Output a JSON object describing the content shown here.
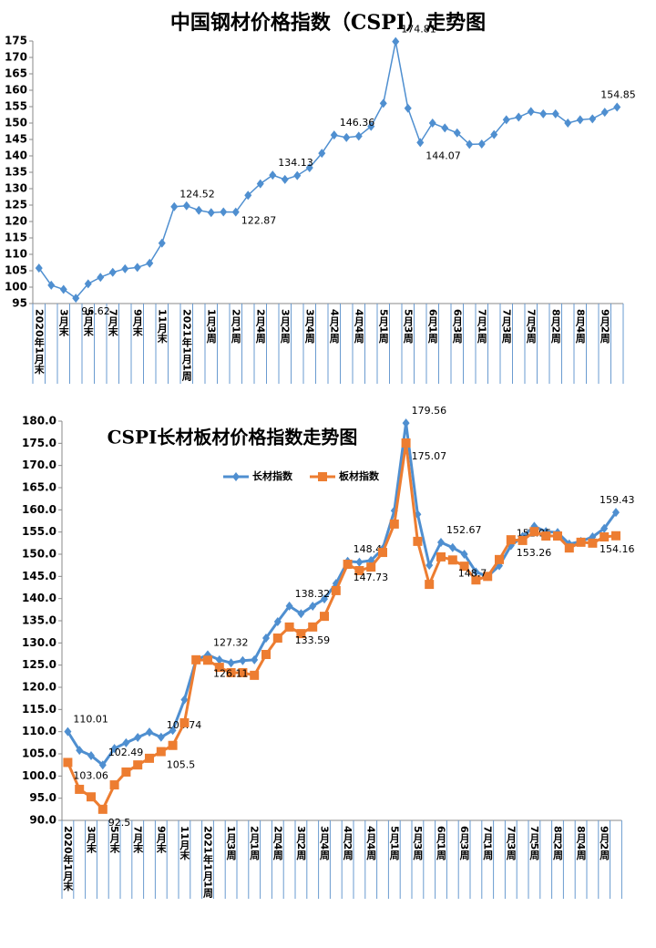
{
  "chart_data": [
    {
      "type": "line",
      "title": "中国钢材价格指数（CSPI）走势图",
      "categories": [
        "2020年1月末",
        null,
        "3月末",
        null,
        "5月末",
        null,
        "7月末",
        null,
        "9月末",
        null,
        "11月末",
        null,
        "2021年1月1周",
        null,
        "1月3周",
        null,
        "2月1周",
        null,
        "2月4周",
        null,
        "3月2周",
        null,
        "3月4周",
        null,
        "4月2周",
        null,
        "4月4周",
        null,
        "5月1周",
        null,
        "5月3周",
        null,
        "6月1周",
        null,
        "6月3周",
        null,
        "7月1周",
        null,
        "7月3周",
        null,
        "7月5周",
        null,
        "8月2周",
        null,
        "8月4周",
        null,
        "9月2周",
        null
      ],
      "series": [
        {
          "color": "#4f8fd0",
          "values": [
            105.8,
            100.6,
            99.3,
            96.62,
            101,
            103,
            104.5,
            105.6,
            106,
            107.3,
            113.4,
            124.52,
            124.8,
            123.4,
            122.7,
            122.9,
            122.87,
            128,
            131.5,
            134.13,
            132.8,
            134,
            136.4,
            140.8,
            146.36,
            145.6,
            146,
            149,
            156,
            174.81,
            154.5,
            144.07,
            150,
            148.5,
            147,
            143.5,
            143.6,
            146.5,
            151,
            151.8,
            153.5,
            152.8,
            152.8,
            150,
            151,
            151.3,
            153.3,
            154.85
          ],
          "value_labels": [
            null,
            null,
            null,
            "96.62",
            null,
            null,
            null,
            null,
            null,
            null,
            null,
            "124.52",
            null,
            null,
            null,
            null,
            "122.87",
            null,
            null,
            "134.13",
            null,
            null,
            null,
            null,
            "146.36",
            null,
            null,
            null,
            null,
            "174.81",
            null,
            "144.07",
            null,
            null,
            null,
            null,
            null,
            null,
            null,
            null,
            null,
            null,
            null,
            null,
            null,
            null,
            null,
            "154.85"
          ]
        }
      ],
      "ylim": [
        95,
        175
      ],
      "yticks": [
        95,
        100,
        105,
        110,
        115,
        120,
        125,
        130,
        135,
        140,
        145,
        150,
        155,
        160,
        165,
        170,
        175
      ]
    },
    {
      "type": "line",
      "title": "CSPI长材板材价格指数走势图",
      "categories": [
        "2020年1月末",
        null,
        "3月末",
        null,
        "5月末",
        null,
        "7月末",
        null,
        "9月末",
        null,
        "11月末",
        null,
        "2021年1月1周",
        null,
        "1月3周",
        null,
        "2月1周",
        null,
        "2月4周",
        null,
        "3月2周",
        null,
        "3月4周",
        null,
        "4月2周",
        null,
        "4月4周",
        null,
        "5月1周",
        null,
        "5月3周",
        null,
        "6月1周",
        null,
        "6月3周",
        null,
        "7月1周",
        null,
        "7月3周",
        null,
        "7月5周",
        null,
        "8月2周",
        null,
        "8月4周",
        null,
        "9月2周",
        null
      ],
      "series": [
        {
          "name": "长材指数",
          "color": "#4f8fd0",
          "marker": "diamond",
          "values": [
            110.01,
            105.8,
            104.6,
            102.49,
            106.2,
            107.5,
            108.7,
            109.9,
            108.74,
            110.3,
            117.2,
            126.2,
            127.32,
            126.2,
            125.5,
            126,
            126.2,
            131.1,
            134.8,
            138.32,
            136.6,
            138.3,
            139.9,
            143.4,
            148.4,
            148.2,
            148.6,
            151.2,
            159.8,
            179.56,
            159,
            147.5,
            152.67,
            151.5,
            150,
            146,
            145,
            147.4,
            151.95,
            154,
            156.3,
            155.1,
            154.9,
            152.3,
            152.9,
            153.9,
            155.8,
            159.43
          ],
          "value_labels": [
            "110.01",
            null,
            null,
            "102.49",
            null,
            null,
            null,
            null,
            "108.74",
            null,
            null,
            null,
            "127.32",
            null,
            null,
            null,
            null,
            null,
            null,
            "138.32",
            null,
            null,
            null,
            null,
            "148.4",
            null,
            null,
            null,
            null,
            "179.56",
            null,
            null,
            "152.67",
            null,
            null,
            null,
            null,
            null,
            "151.95",
            null,
            null,
            null,
            null,
            null,
            null,
            null,
            null,
            "159.43"
          ]
        },
        {
          "name": "板材指数",
          "color": "#ed7d31",
          "marker": "square",
          "values": [
            103.06,
            97,
            95.3,
            92.5,
            98,
            100.9,
            102.5,
            104,
            105.5,
            106.9,
            112,
            126.2,
            126.11,
            124.5,
            123.3,
            123.3,
            122.7,
            127.4,
            131.1,
            133.59,
            132.1,
            133.6,
            136,
            141.8,
            147.73,
            146.3,
            147.1,
            150.4,
            156.8,
            175.07,
            152.9,
            143.2,
            149.4,
            148.7,
            147.3,
            144.2,
            145,
            148.8,
            153.26,
            153.1,
            155.1,
            154.1,
            154.1,
            151.4,
            152.7,
            152.5,
            153.9,
            154.16
          ],
          "value_labels": [
            "103.06",
            null,
            null,
            "92.5",
            null,
            null,
            null,
            null,
            "105.5",
            null,
            null,
            null,
            "126.11",
            null,
            null,
            null,
            null,
            null,
            null,
            "133.59",
            null,
            null,
            null,
            null,
            "147.73",
            null,
            null,
            null,
            null,
            "175.07",
            null,
            null,
            null,
            "148.7",
            null,
            null,
            null,
            null,
            "153.26",
            null,
            null,
            null,
            null,
            null,
            null,
            null,
            null,
            "154.16"
          ]
        }
      ],
      "ylim": [
        90,
        180
      ],
      "yticks": [
        {
          "value": 90,
          "label": "90.0"
        },
        {
          "value": 95,
          "label": "95.0"
        },
        {
          "value": 100,
          "label": "100.0"
        },
        {
          "value": 105,
          "label": "105.0"
        },
        {
          "value": 110,
          "label": "110.0"
        },
        {
          "value": 115,
          "label": "115.0"
        },
        {
          "value": 120,
          "label": "120.0"
        },
        {
          "value": 125,
          "label": "125.0"
        },
        {
          "value": 130,
          "label": "130.0"
        },
        {
          "value": 135,
          "label": "135.0"
        },
        {
          "value": 140,
          "label": "140.0"
        },
        {
          "value": 145,
          "label": "145.0"
        },
        {
          "value": 150,
          "label": "150.0"
        },
        {
          "value": 155,
          "label": "155.0"
        },
        {
          "value": 160,
          "label": "160.0"
        },
        {
          "value": 165,
          "label": "165.0"
        },
        {
          "value": 170,
          "label": "170.0"
        },
        {
          "value": 175,
          "label": "175.0"
        },
        {
          "value": 180,
          "label": "180.0"
        }
      ],
      "legend": "top"
    }
  ]
}
